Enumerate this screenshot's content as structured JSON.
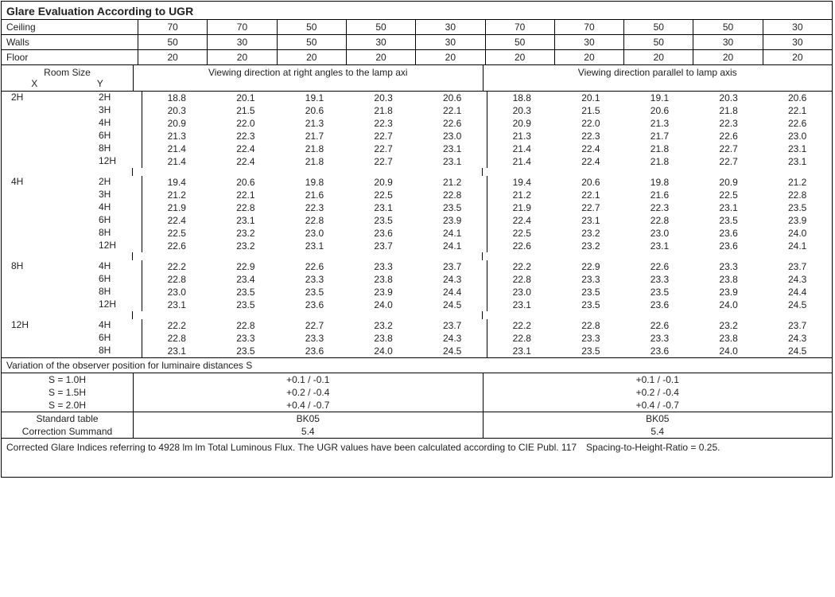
{
  "title": "Glare Evaluation According to UGR",
  "header_rows": [
    {
      "label": "Ceiling",
      "left": [
        "70",
        "70",
        "50",
        "50",
        "30"
      ],
      "right": [
        "70",
        "70",
        "50",
        "50",
        "30"
      ]
    },
    {
      "label": "Walls",
      "left": [
        "50",
        "30",
        "50",
        "30",
        "30"
      ],
      "right": [
        "50",
        "30",
        "50",
        "30",
        "30"
      ]
    },
    {
      "label": "Floor",
      "left": [
        "20",
        "20",
        "20",
        "20",
        "20"
      ],
      "right": [
        "20",
        "20",
        "20",
        "20",
        "20"
      ]
    }
  ],
  "subheader": {
    "room_size_label": "Room Size",
    "x_label": "X",
    "y_label": "Y",
    "left_title": "Viewing direction at right angles to the lamp axi",
    "right_title": "Viewing direction parallel to lamp axis"
  },
  "groups": [
    {
      "x": "2H",
      "rows": [
        {
          "y": "2H",
          "left": [
            "18.8",
            "20.1",
            "19.1",
            "20.3",
            "20.6"
          ],
          "right": [
            "18.8",
            "20.1",
            "19.1",
            "20.3",
            "20.6"
          ]
        },
        {
          "y": "3H",
          "left": [
            "20.3",
            "21.5",
            "20.6",
            "21.8",
            "22.1"
          ],
          "right": [
            "20.3",
            "21.5",
            "20.6",
            "21.8",
            "22.1"
          ]
        },
        {
          "y": "4H",
          "left": [
            "20.9",
            "22.0",
            "21.3",
            "22.3",
            "22.6"
          ],
          "right": [
            "20.9",
            "22.0",
            "21.3",
            "22.3",
            "22.6"
          ]
        },
        {
          "y": "6H",
          "left": [
            "21.3",
            "22.3",
            "21.7",
            "22.7",
            "23.0"
          ],
          "right": [
            "21.3",
            "22.3",
            "21.7",
            "22.6",
            "23.0"
          ]
        },
        {
          "y": "8H",
          "left": [
            "21.4",
            "22.4",
            "21.8",
            "22.7",
            "23.1"
          ],
          "right": [
            "21.4",
            "22.4",
            "21.8",
            "22.7",
            "23.1"
          ]
        },
        {
          "y": "12H",
          "left": [
            "21.4",
            "22.4",
            "21.8",
            "22.7",
            "23.1"
          ],
          "right": [
            "21.4",
            "22.4",
            "21.8",
            "22.7",
            "23.1"
          ]
        }
      ],
      "spacer_after": true
    },
    {
      "x": "4H",
      "rows": [
        {
          "y": "2H",
          "left": [
            "19.4",
            "20.6",
            "19.8",
            "20.9",
            "21.2"
          ],
          "right": [
            "19.4",
            "20.6",
            "19.8",
            "20.9",
            "21.2"
          ]
        },
        {
          "y": "3H",
          "left": [
            "21.2",
            "22.1",
            "21.6",
            "22.5",
            "22.8"
          ],
          "right": [
            "21.2",
            "22.1",
            "21.6",
            "22.5",
            "22.8"
          ]
        },
        {
          "y": "4H",
          "left": [
            "21.9",
            "22.8",
            "22.3",
            "23.1",
            "23.5"
          ],
          "right": [
            "21.9",
            "22.7",
            "22.3",
            "23.1",
            "23.5"
          ]
        },
        {
          "y": "6H",
          "left": [
            "22.4",
            "23.1",
            "22.8",
            "23.5",
            "23.9"
          ],
          "right": [
            "22.4",
            "23.1",
            "22.8",
            "23.5",
            "23.9"
          ]
        },
        {
          "y": "8H",
          "left": [
            "22.5",
            "23.2",
            "23.0",
            "23.6",
            "24.1"
          ],
          "right": [
            "22.5",
            "23.2",
            "23.0",
            "23.6",
            "24.0"
          ]
        },
        {
          "y": "12H",
          "left": [
            "22.6",
            "23.2",
            "23.1",
            "23.7",
            "24.1"
          ],
          "right": [
            "22.6",
            "23.2",
            "23.1",
            "23.6",
            "24.1"
          ]
        }
      ],
      "spacer_after": true
    },
    {
      "x": "8H",
      "rows": [
        {
          "y": "4H",
          "left": [
            "22.2",
            "22.9",
            "22.6",
            "23.3",
            "23.7"
          ],
          "right": [
            "22.2",
            "22.9",
            "22.6",
            "23.3",
            "23.7"
          ]
        },
        {
          "y": "6H",
          "left": [
            "22.8",
            "23.4",
            "23.3",
            "23.8",
            "24.3"
          ],
          "right": [
            "22.8",
            "23.3",
            "23.3",
            "23.8",
            "24.3"
          ]
        },
        {
          "y": "8H",
          "left": [
            "23.0",
            "23.5",
            "23.5",
            "23.9",
            "24.4"
          ],
          "right": [
            "23.0",
            "23.5",
            "23.5",
            "23.9",
            "24.4"
          ]
        },
        {
          "y": "12H",
          "left": [
            "23.1",
            "23.5",
            "23.6",
            "24.0",
            "24.5"
          ],
          "right": [
            "23.1",
            "23.5",
            "23.6",
            "24.0",
            "24.5"
          ]
        }
      ],
      "spacer_after": true
    },
    {
      "x": "12H",
      "rows": [
        {
          "y": "4H",
          "left": [
            "22.2",
            "22.8",
            "22.7",
            "23.2",
            "23.7"
          ],
          "right": [
            "22.2",
            "22.8",
            "22.6",
            "23.2",
            "23.7"
          ]
        },
        {
          "y": "6H",
          "left": [
            "22.8",
            "23.3",
            "23.3",
            "23.8",
            "24.3"
          ],
          "right": [
            "22.8",
            "23.3",
            "23.3",
            "23.8",
            "24.3"
          ]
        },
        {
          "y": "8H",
          "left": [
            "23.1",
            "23.5",
            "23.6",
            "24.0",
            "24.5"
          ],
          "right": [
            "23.1",
            "23.5",
            "23.6",
            "24.0",
            "24.5"
          ]
        }
      ],
      "spacer_after": false
    }
  ],
  "variation_title": "Variation of the observer position for luminaire distances S",
  "variation_rows": [
    {
      "label": "S = 1.0H",
      "left": "+0.1 / -0.1",
      "right": "+0.1 / -0.1"
    },
    {
      "label": "S = 1.5H",
      "left": "+0.2 / -0.4",
      "right": "+0.2 / -0.4"
    },
    {
      "label": "S = 2.0H",
      "left": "+0.4 / -0.7",
      "right": "+0.4 / -0.7"
    }
  ],
  "std_rows": [
    {
      "label": "Standard table",
      "left": "BK05",
      "right": "BK05"
    },
    {
      "label": "Correction Summand",
      "left": "5.4",
      "right": "5.4"
    }
  ],
  "footer": "Corrected Glare Indices referring to 4928 lm lm Total Luminous Flux. The UGR values have been calculated according to CIE Publ. 117 Spacing-to-Height-Ratio = 0.25."
}
